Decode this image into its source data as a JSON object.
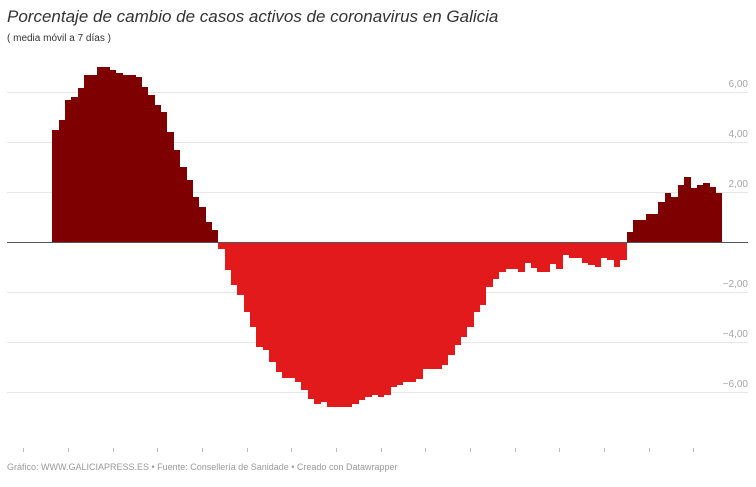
{
  "header": {
    "title": "Porcentaje de cambio de casos activos de coronavirus en Galicia",
    "subtitle": "( media móvil a 7 días )"
  },
  "footer": {
    "text": "Gráfico: WWW.GALICIAPRESS.ES • Fuente: Consellería de Sanidade • Creado con Datawrapper"
  },
  "colors": {
    "positive": "#7f0000",
    "negative": "#e31a1c",
    "grid": "#e6e6e6",
    "baseline": "#555555",
    "tick_label": "#a6a6a6"
  },
  "chart_data": {
    "type": "bar",
    "title": "Porcentaje de cambio de casos activos de coronavirus en Galicia",
    "subtitle": "( media móvil a 7 días )",
    "xlabel": "",
    "ylabel": "",
    "ylim": [
      -8,
      7
    ],
    "grid": true,
    "legend": null,
    "y_ticks": [
      6,
      4,
      2,
      -2,
      -4,
      -6
    ],
    "y_tick_labels": [
      "6,00",
      "4,00",
      "2,00",
      "−2,00",
      "−4,00",
      "−6,00"
    ],
    "x_tick_count": 16,
    "x_tick_every_n_bars": 7,
    "values": [
      4.48,
      4.88,
      5.68,
      5.79,
      6.16,
      6.69,
      6.69,
      6.99,
      6.99,
      6.88,
      6.77,
      6.69,
      6.69,
      6.59,
      6.19,
      5.89,
      5.49,
      5.19,
      4.39,
      3.68,
      2.99,
      2.48,
      1.81,
      1.39,
      0.79,
      0.48,
      -0.28,
      -1.11,
      -1.72,
      -2.12,
      -2.81,
      -3.41,
      -4.21,
      -4.32,
      -4.81,
      -5.21,
      -5.43,
      -5.43,
      -5.61,
      -5.92,
      -6.29,
      -6.48,
      -6.39,
      -6.61,
      -6.61,
      -6.61,
      -6.61,
      -6.48,
      -6.32,
      -6.21,
      -6.13,
      -6.21,
      -6.12,
      -5.81,
      -5.72,
      -5.59,
      -5.59,
      -5.49,
      -5.09,
      -5.09,
      -5.09,
      -4.92,
      -4.52,
      -4.12,
      -3.81,
      -3.41,
      -2.81,
      -2.52,
      -1.81,
      -1.49,
      -1.2,
      -1.09,
      -1.09,
      -1.21,
      -0.85,
      -1.05,
      -1.19,
      -1.19,
      -0.89,
      -1.09,
      -0.52,
      -0.63,
      -0.63,
      -0.85,
      -0.92,
      -1.01,
      -0.63,
      -0.72,
      -0.99,
      -0.72,
      0.39,
      0.88,
      0.88,
      1.11,
      1.11,
      1.59,
      1.97,
      1.79,
      2.28,
      2.59,
      2.17,
      2.28,
      2.37,
      2.19,
      1.97
    ]
  }
}
